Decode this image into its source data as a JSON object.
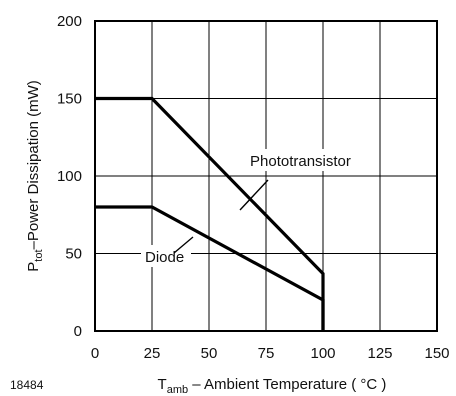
{
  "chart_data": {
    "type": "line",
    "xlabel": "T",
    "xlabel_sub": "amb",
    "xlabel_rest": " – Ambient Temperature ( °C )",
    "ylabel": "P",
    "ylabel_sub": "tot",
    "ylabel_rest": "–Power Dissipation (mW)",
    "xlim": [
      0,
      150
    ],
    "ylim": [
      0,
      200
    ],
    "xticks": [
      0,
      25,
      50,
      75,
      100,
      125,
      150
    ],
    "yticks": [
      0,
      50,
      100,
      150,
      200
    ],
    "grid": true,
    "series": [
      {
        "name": "Phototransistor",
        "x": [
          0,
          25,
          100,
          100
        ],
        "y": [
          150,
          150,
          37,
          0
        ]
      },
      {
        "name": "Diode",
        "x": [
          0,
          25,
          100,
          100
        ],
        "y": [
          80,
          80,
          20,
          0
        ]
      }
    ]
  },
  "figure_id": "18484",
  "colors": {
    "line": "#000000",
    "grid": "#000000"
  }
}
